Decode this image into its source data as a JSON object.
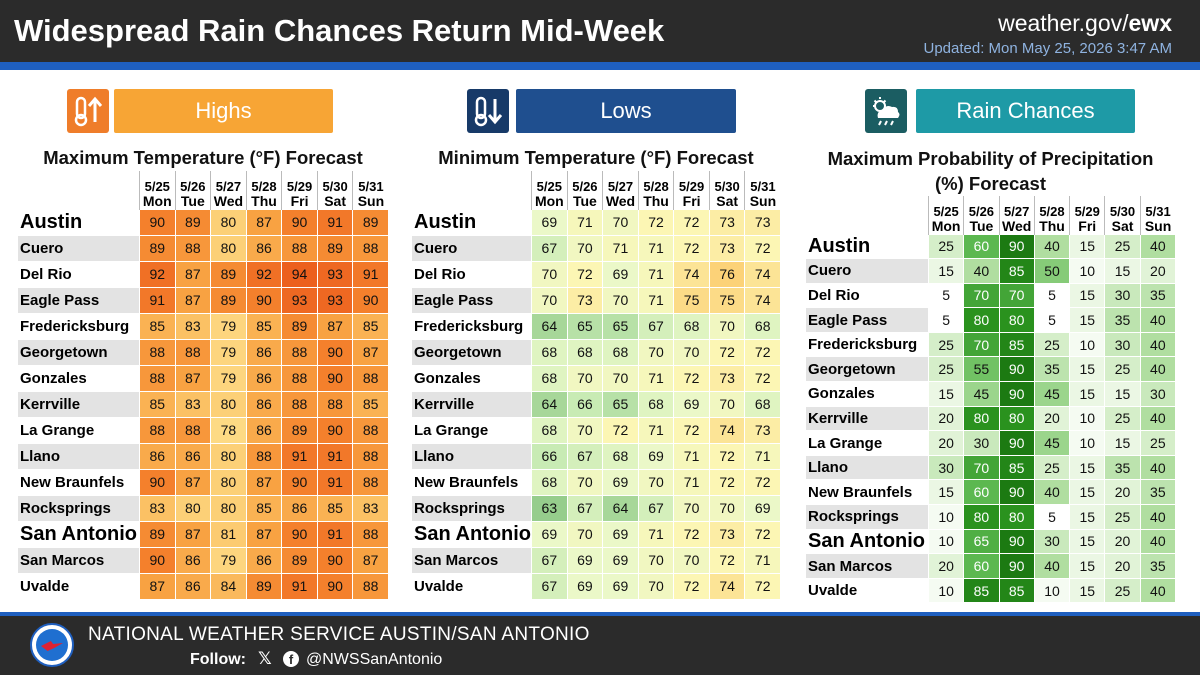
{
  "header": {
    "title": "Widespread Rain Chances Return Mid-Week",
    "site_prefix": "weather.gov/",
    "site_office": "ewx",
    "updated": "Updated: Mon May 25, 2026 3:47 AM"
  },
  "footer": {
    "org": "NATIONAL WEATHER SERVICE AUSTIN/SAN ANTONIO",
    "follow": "Follow:",
    "handle": "@NWSSanAntonio"
  },
  "dates": [
    "5/25",
    "5/26",
    "5/27",
    "5/28",
    "5/29",
    "5/30",
    "5/31"
  ],
  "days": [
    "Mon",
    "Tue",
    "Wed",
    "Thu",
    "Fri",
    "Sat",
    "Sun"
  ],
  "colors": {
    "highs_button": "#f7a535",
    "highs_icon": "#ef7d2a",
    "lows_button": "#1f4f8f",
    "lows_icon": "#173a68",
    "rain_button": "#1e9aa6",
    "rain_icon": "#1b5d62"
  },
  "panels": [
    {
      "key": "highs",
      "icon": "thermometer-up-icon",
      "label": "Highs",
      "title": "Maximum Temperature (°F) Forecast",
      "rows": [
        {
          "city": "Austin",
          "big": true,
          "values": [
            90,
            89,
            80,
            87,
            90,
            91,
            89
          ]
        },
        {
          "city": "Cuero",
          "values": [
            89,
            88,
            80,
            86,
            88,
            89,
            88
          ]
        },
        {
          "city": "Del Rio",
          "values": [
            92,
            87,
            89,
            92,
            94,
            93,
            91
          ]
        },
        {
          "city": "Eagle Pass",
          "values": [
            91,
            87,
            89,
            90,
            93,
            93,
            90
          ]
        },
        {
          "city": "Fredericksburg",
          "values": [
            85,
            83,
            79,
            85,
            89,
            87,
            85
          ]
        },
        {
          "city": "Georgetown",
          "values": [
            88,
            88,
            79,
            86,
            88,
            90,
            87
          ]
        },
        {
          "city": "Gonzales",
          "values": [
            88,
            87,
            79,
            86,
            88,
            90,
            88
          ]
        },
        {
          "city": "Kerrville",
          "values": [
            85,
            83,
            80,
            86,
            88,
            88,
            85
          ]
        },
        {
          "city": "La Grange",
          "values": [
            88,
            88,
            78,
            86,
            89,
            90,
            88
          ]
        },
        {
          "city": "Llano",
          "values": [
            86,
            86,
            80,
            88,
            91,
            91,
            88
          ]
        },
        {
          "city": "New Braunfels",
          "values": [
            90,
            87,
            80,
            87,
            90,
            91,
            88
          ]
        },
        {
          "city": "Rocksprings",
          "values": [
            83,
            80,
            80,
            85,
            86,
            85,
            83
          ]
        },
        {
          "city": "San Antonio",
          "big": true,
          "values": [
            89,
            87,
            81,
            87,
            90,
            91,
            88
          ]
        },
        {
          "city": "San Marcos",
          "values": [
            90,
            86,
            79,
            86,
            89,
            90,
            87
          ]
        },
        {
          "city": "Uvalde",
          "values": [
            87,
            86,
            84,
            89,
            91,
            90,
            88
          ]
        }
      ]
    },
    {
      "key": "lows",
      "icon": "thermometer-down-icon",
      "label": "Lows",
      "title": "Minimum Temperature (°F) Forecast",
      "rows": [
        {
          "city": "Austin",
          "big": true,
          "values": [
            69,
            71,
            70,
            72,
            72,
            73,
            73
          ]
        },
        {
          "city": "Cuero",
          "values": [
            67,
            70,
            71,
            71,
            72,
            73,
            72
          ]
        },
        {
          "city": "Del Rio",
          "values": [
            70,
            72,
            69,
            71,
            74,
            76,
            74
          ]
        },
        {
          "city": "Eagle Pass",
          "values": [
            70,
            73,
            70,
            71,
            75,
            75,
            74
          ]
        },
        {
          "city": "Fredericksburg",
          "values": [
            64,
            65,
            65,
            67,
            68,
            70,
            68
          ]
        },
        {
          "city": "Georgetown",
          "values": [
            68,
            68,
            68,
            70,
            70,
            72,
            72
          ]
        },
        {
          "city": "Gonzales",
          "values": [
            68,
            70,
            70,
            71,
            72,
            73,
            72
          ]
        },
        {
          "city": "Kerrville",
          "values": [
            64,
            66,
            65,
            68,
            69,
            70,
            68
          ]
        },
        {
          "city": "La Grange",
          "values": [
            68,
            70,
            72,
            71,
            72,
            74,
            73
          ]
        },
        {
          "city": "Llano",
          "values": [
            66,
            67,
            68,
            69,
            71,
            72,
            71
          ]
        },
        {
          "city": "New Braunfels",
          "values": [
            68,
            70,
            69,
            70,
            71,
            72,
            72
          ]
        },
        {
          "city": "Rocksprings",
          "values": [
            63,
            67,
            64,
            67,
            70,
            70,
            69
          ]
        },
        {
          "city": "San Antonio",
          "big": true,
          "values": [
            69,
            70,
            69,
            71,
            72,
            73,
            72
          ]
        },
        {
          "city": "San Marcos",
          "values": [
            67,
            69,
            69,
            70,
            70,
            72,
            71
          ]
        },
        {
          "city": "Uvalde",
          "values": [
            67,
            69,
            69,
            70,
            72,
            74,
            72
          ]
        }
      ]
    },
    {
      "key": "rain",
      "icon": "rain-cloud-icon",
      "label": "Rain Chances",
      "title": "Maximum Probability of Precipitation (%) Forecast",
      "rows": [
        {
          "city": "Austin",
          "big": true,
          "values": [
            25,
            60,
            90,
            40,
            15,
            25,
            40
          ]
        },
        {
          "city": "Cuero",
          "values": [
            15,
            40,
            85,
            50,
            10,
            15,
            20
          ]
        },
        {
          "city": "Del Rio",
          "values": [
            5,
            70,
            70,
            5,
            15,
            30,
            35
          ]
        },
        {
          "city": "Eagle Pass",
          "values": [
            5,
            80,
            80,
            5,
            15,
            35,
            40
          ]
        },
        {
          "city": "Fredericksburg",
          "values": [
            25,
            70,
            85,
            25,
            10,
            30,
            40
          ]
        },
        {
          "city": "Georgetown",
          "values": [
            25,
            55,
            90,
            35,
            15,
            25,
            40
          ]
        },
        {
          "city": "Gonzales",
          "values": [
            15,
            45,
            90,
            45,
            15,
            15,
            30
          ]
        },
        {
          "city": "Kerrville",
          "values": [
            20,
            80,
            80,
            20,
            10,
            25,
            40
          ]
        },
        {
          "city": "La Grange",
          "values": [
            20,
            30,
            90,
            45,
            10,
            15,
            25
          ]
        },
        {
          "city": "Llano",
          "values": [
            30,
            70,
            85,
            25,
            15,
            35,
            40
          ]
        },
        {
          "city": "New Braunfels",
          "values": [
            15,
            60,
            90,
            40,
            15,
            20,
            35
          ]
        },
        {
          "city": "Rocksprings",
          "values": [
            10,
            80,
            80,
            5,
            15,
            25,
            40
          ]
        },
        {
          "city": "San Antonio",
          "big": true,
          "values": [
            10,
            65,
            90,
            30,
            15,
            20,
            40
          ]
        },
        {
          "city": "San Marcos",
          "values": [
            20,
            60,
            90,
            40,
            15,
            20,
            35
          ]
        },
        {
          "city": "Uvalde",
          "values": [
            10,
            85,
            85,
            10,
            15,
            25,
            40
          ]
        }
      ]
    }
  ]
}
